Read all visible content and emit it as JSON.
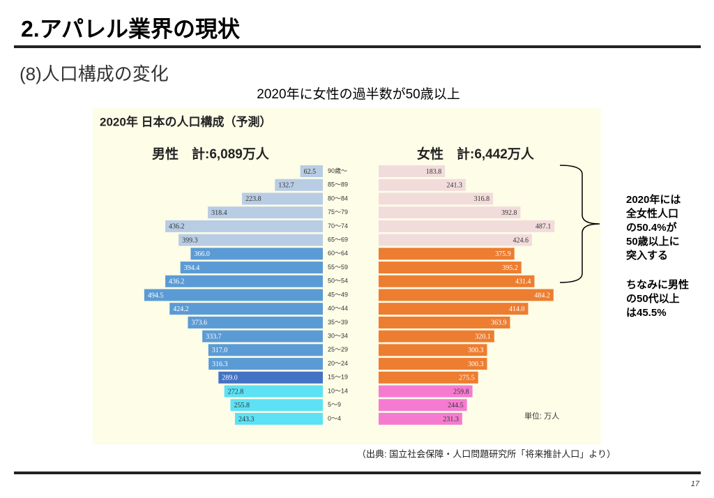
{
  "header": {
    "title": "2.アパレル業界の現状",
    "subtitle": "(8)人口構成の変化"
  },
  "chart_data": {
    "type": "pyramid",
    "headline": "2020年に女性の過半数が50歳以上",
    "title": "2020年 日本の人口構成（予測）",
    "unit": "単位: 万人",
    "categories": [
      "90歳〜",
      "85〜89",
      "80〜84",
      "75〜79",
      "70〜74",
      "65〜69",
      "60〜64",
      "55〜59",
      "50〜54",
      "45〜49",
      "40〜44",
      "35〜39",
      "30〜34",
      "25〜29",
      "20〜24",
      "15〜19",
      "10〜14",
      "5〜9",
      "0〜4"
    ],
    "series": [
      {
        "name": "男性　計:6,089万人",
        "side": "left",
        "values": [
          62.5,
          132.7,
          223.8,
          318.4,
          436.2,
          399.3,
          366.0,
          394.4,
          436.2,
          494.5,
          424.2,
          373.6,
          333.7,
          317.0,
          316.3,
          289.0,
          272.8,
          255.8,
          243.3
        ],
        "value_labels": [
          "62.5",
          "132.7",
          "223.8",
          "318.4",
          "436.2",
          "399.3",
          "366.0",
          "394.4",
          "436.2",
          "494.5",
          "424.2",
          "373.6",
          "333.7",
          "317.0",
          "316.3",
          "289.0",
          "272.8",
          "255.8",
          "243.3"
        ],
        "colors": [
          "#b8cce4",
          "#b8cce4",
          "#b8cce4",
          "#b8cce4",
          "#b8cce4",
          "#b8cce4",
          "#5b9bd5",
          "#5b9bd5",
          "#5b9bd5",
          "#5b9bd5",
          "#5b9bd5",
          "#5b9bd5",
          "#5b9bd5",
          "#5b9bd5",
          "#5b9bd5",
          "#4472c4",
          "#5ce1f5",
          "#5ce1f5",
          "#5ce1f5"
        ]
      },
      {
        "name": "女性　計:6,442万人",
        "side": "right",
        "values": [
          183.8,
          241.3,
          316.8,
          392.8,
          487.1,
          424.6,
          375.9,
          395.2,
          431.4,
          484.2,
          414.0,
          363.9,
          320.1,
          300.3,
          300.3,
          275.5,
          259.8,
          244.5,
          231.3
        ],
        "value_labels": [
          "183.8",
          "241.3",
          "316.8",
          "392.8",
          "487.1",
          "424.6",
          "375.9",
          "395.2",
          "431.4",
          "484.2",
          "414.0",
          "363.9",
          "320.1",
          "300.3",
          "300.3",
          "275.5",
          "259.8",
          "244.5",
          "231.3"
        ],
        "colors": [
          "#f2dcdb",
          "#f2dcdb",
          "#f2dcdb",
          "#f2dcdb",
          "#f2dcdb",
          "#f2dcdb",
          "#ed7d31",
          "#ed7d31",
          "#ed7d31",
          "#ed7d31",
          "#ed7d31",
          "#ed7d31",
          "#ed7d31",
          "#ed7d31",
          "#ed7d31",
          "#ed7d31",
          "#f57bd0",
          "#f57bd0",
          "#f57bd0"
        ]
      }
    ],
    "annotations": [
      [
        "2020年には",
        "全女性人口",
        "の50.4%が",
        "50歳以上に",
        "突入する"
      ],
      [
        "ちなみに男性",
        "の50代以上",
        "は45.5%"
      ]
    ],
    "source": "（出典: 国立社会保障・人口問題研究所「将来推計人口」より）"
  },
  "footer": {
    "page": "17"
  }
}
